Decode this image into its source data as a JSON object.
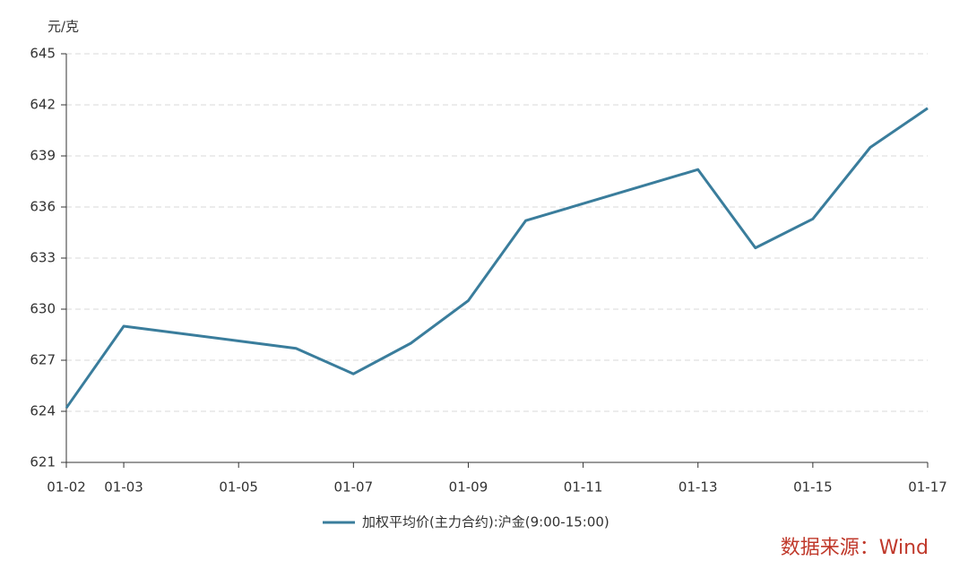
{
  "chart_data": {
    "type": "line",
    "y_label": "元/克",
    "x": [
      2,
      3,
      6,
      7,
      8,
      9,
      10,
      13,
      14,
      15,
      16,
      17
    ],
    "series": [
      {
        "name": "加权平均价(主力合约):沪金(9:00-15:00)",
        "color": "#3a7d9c",
        "values": [
          624.2,
          629.0,
          627.7,
          626.2,
          628.0,
          630.5,
          635.2,
          638.2,
          633.6,
          635.3,
          639.5,
          641.8
        ]
      }
    ],
    "xlim": [
      2,
      17
    ],
    "xticks": [
      {
        "value": 2,
        "label": "01-02"
      },
      {
        "value": 3,
        "label": "01-03"
      },
      {
        "value": 5,
        "label": "01-05"
      },
      {
        "value": 7,
        "label": "01-07"
      },
      {
        "value": 9,
        "label": "01-09"
      },
      {
        "value": 11,
        "label": "01-11"
      },
      {
        "value": 13,
        "label": "01-13"
      },
      {
        "value": 15,
        "label": "01-15"
      },
      {
        "value": 17,
        "label": "01-17"
      }
    ],
    "ylim": [
      621,
      645
    ],
    "yticks": [
      621,
      624,
      627,
      630,
      633,
      636,
      639,
      642,
      645
    ],
    "grid": true,
    "source": "数据来源：Wind"
  }
}
